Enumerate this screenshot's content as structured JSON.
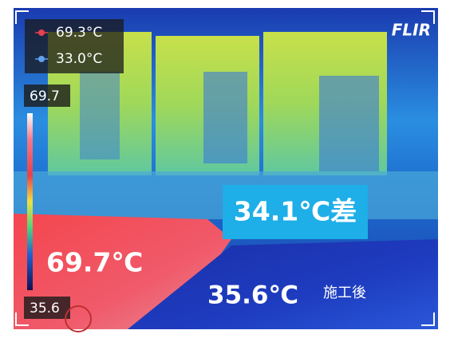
{
  "readout": {
    "max": "69.3°C",
    "min": "33.0°C"
  },
  "scale": {
    "top": "69.7",
    "bottom": "35.6"
  },
  "brand": "FLIR",
  "annotations": {
    "hot_spot": "69.7℃",
    "cool_spot": "35.6℃",
    "cool_note": "施工後",
    "difference": "34.1℃差"
  }
}
